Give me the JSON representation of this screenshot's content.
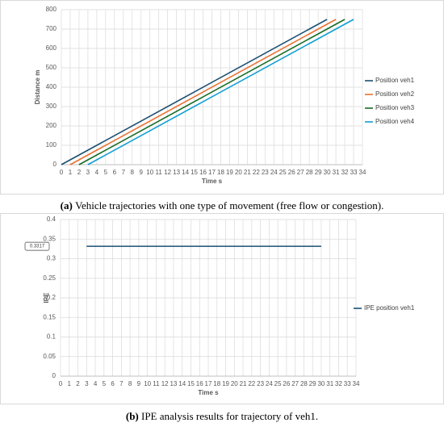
{
  "chart_data": [
    {
      "type": "line",
      "caption_prefix": "(a)",
      "caption": "Vehicle trajectories with one type of movement (free flow or congestion).",
      "xlabel": "Time s",
      "ylabel": "Distance m",
      "xlim": [
        0,
        34
      ],
      "xticks": [
        0,
        1,
        2,
        3,
        4,
        5,
        6,
        7,
        8,
        9,
        10,
        11,
        12,
        13,
        14,
        15,
        16,
        17,
        18,
        19,
        20,
        21,
        22,
        23,
        24,
        25,
        26,
        27,
        28,
        29,
        30,
        31,
        32,
        33,
        34
      ],
      "ylim": [
        0,
        800
      ],
      "yticks": [
        0,
        100,
        200,
        300,
        400,
        500,
        600,
        700,
        800
      ],
      "grid": true,
      "legend": "right",
      "series": [
        {
          "name": "Position veh1",
          "color": "#1b4f72",
          "x": [
            0,
            30
          ],
          "values": [
            0,
            750
          ]
        },
        {
          "name": "Position veh2",
          "color": "#e97132",
          "x": [
            1,
            31
          ],
          "values": [
            0,
            750
          ]
        },
        {
          "name": "Position veh3",
          "color": "#196b24",
          "x": [
            2,
            32
          ],
          "values": [
            0,
            750
          ]
        },
        {
          "name": "Position veh4",
          "color": "#0f9ed5",
          "x": [
            3,
            33
          ],
          "values": [
            0,
            750
          ]
        }
      ]
    },
    {
      "type": "line",
      "caption_prefix": "(b)",
      "caption": "IPE analysis results for trajectory of veh1.",
      "xlabel": "Time s",
      "ylabel": "IPE",
      "xlim": [
        0,
        34
      ],
      "xticks": [
        0,
        1,
        2,
        3,
        4,
        5,
        6,
        7,
        8,
        9,
        10,
        11,
        12,
        13,
        14,
        15,
        16,
        17,
        18,
        19,
        20,
        21,
        22,
        23,
        24,
        25,
        26,
        27,
        28,
        29,
        30,
        31,
        32,
        33,
        34
      ],
      "ylim": [
        0,
        0.4
      ],
      "yticks": [
        0,
        0.05,
        0.1,
        0.15,
        0.2,
        0.25,
        0.3,
        0.35,
        0.4
      ],
      "grid": true,
      "legend": "right",
      "series": [
        {
          "name": "IPE position veh1",
          "color": "#1b4f72",
          "x": [
            3,
            30
          ],
          "values": [
            0.3317,
            0.3317
          ],
          "value_labels": [
            "0.3317",
            null
          ]
        }
      ]
    }
  ]
}
